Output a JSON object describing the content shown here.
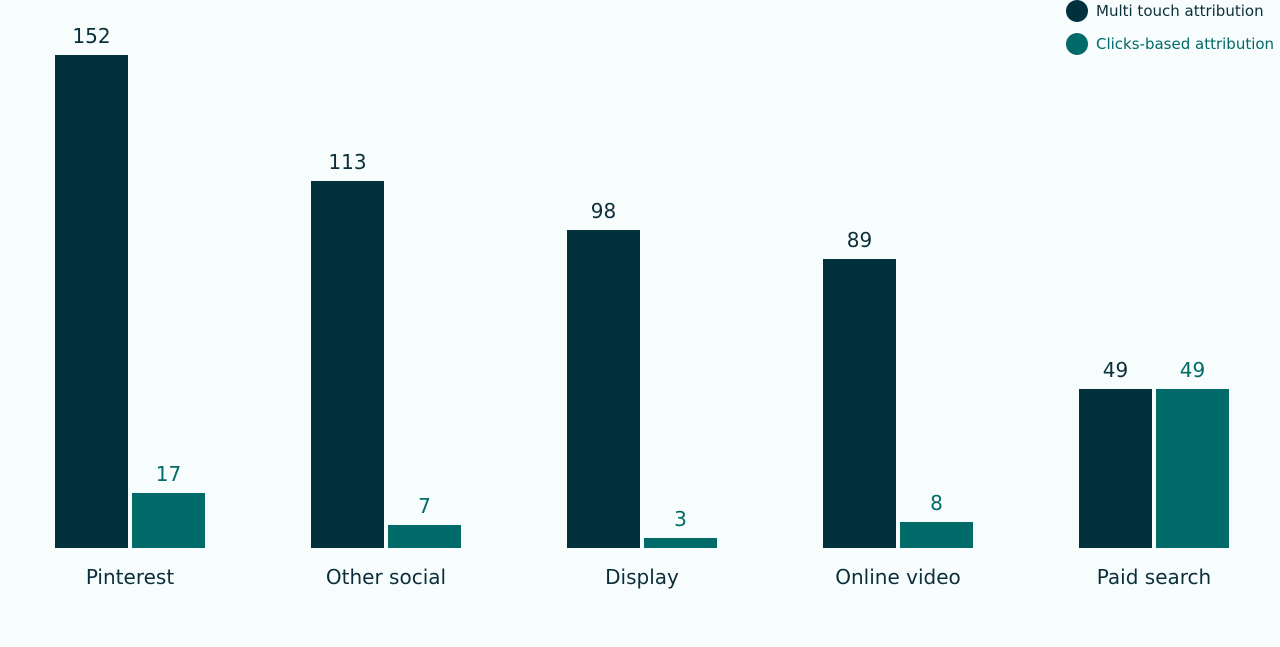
{
  "colors": {
    "mta": "#02313e",
    "clicks": "#006b68",
    "background": "#f7fcfc"
  },
  "legend": [
    {
      "label": "Multi touch attribution",
      "color": "#02313e"
    },
    {
      "label": "Clicks-based attribution",
      "color": "#006b68"
    }
  ],
  "chart_data": {
    "type": "bar",
    "title": "",
    "xlabel": "",
    "ylabel": "",
    "categories": [
      "Pinterest",
      "Other social",
      "Display",
      "Online video",
      "Paid search"
    ],
    "series": [
      {
        "name": "Multi touch attribution",
        "values": [
          152,
          113,
          98,
          89,
          49
        ]
      },
      {
        "name": "Clicks-based attribution",
        "values": [
          17,
          7,
          3,
          8,
          49
        ]
      }
    ],
    "ylim": [
      0,
      152
    ],
    "grid": false,
    "legend_position": "top-right",
    "data_labels": true
  }
}
